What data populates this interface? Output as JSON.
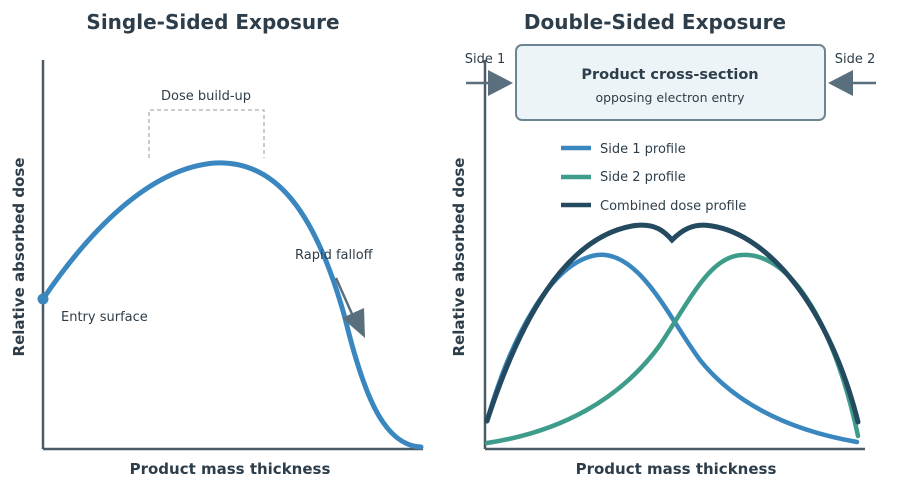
{
  "left_panel": {
    "title": "Single-Sided Exposure",
    "x_label": "Product mass thickness",
    "y_label": "Relative absorbed dose",
    "annotations": {
      "dose_buildup": "Dose build-up",
      "entry_surface": "Entry surface",
      "rapid_falloff": "Rapid falloff"
    },
    "curve_color": "#3a87bf"
  },
  "right_panel": {
    "title": "Double-Sided Exposure",
    "x_label": "Product mass thickness",
    "y_label": "Relative absorbed dose",
    "side_left": "Side 1",
    "side_right": "Side 2",
    "product_box": {
      "title": "Product cross-section",
      "subtitle": "opposing electron entry"
    },
    "legend": [
      {
        "label": "Side 1 profile",
        "color": "#3a87bf"
      },
      {
        "label": "Side 2 profile",
        "color": "#3d9c8a"
      },
      {
        "label": "Combined dose profile",
        "color": "#244a60"
      }
    ]
  }
}
